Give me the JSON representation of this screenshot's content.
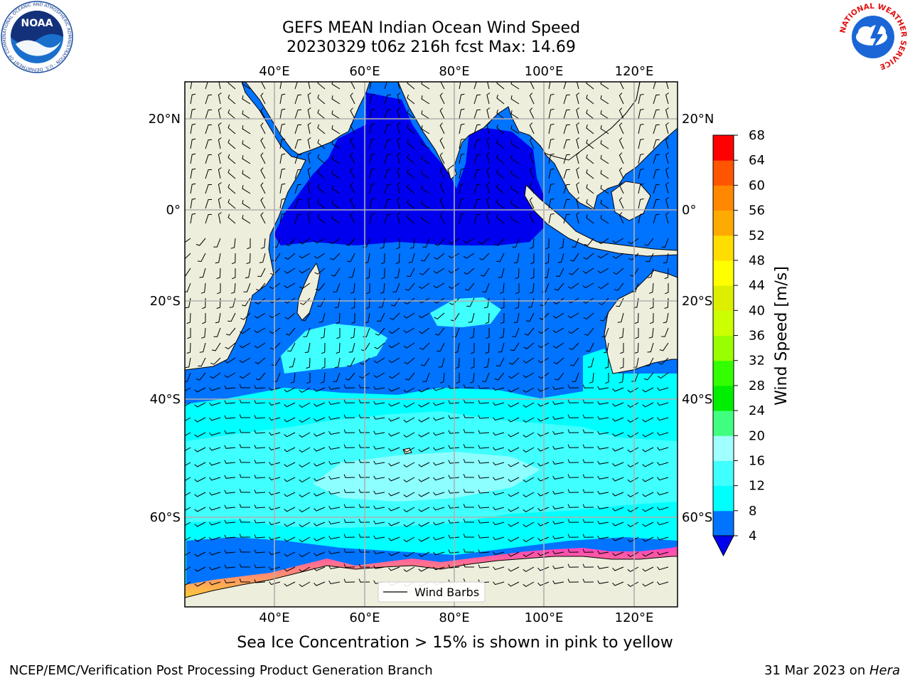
{
  "header": {
    "title_line1": "GEFS MEAN Indian Ocean Wind Speed",
    "title_line2": "20230329 t06z 216h fcst   Max: 14.69"
  },
  "map": {
    "lon_ticks": [
      "40°E",
      "60°E",
      "80°E",
      "100°E",
      "120°E"
    ],
    "lat_ticks": [
      "20°N",
      "0°",
      "20°S",
      "40°S",
      "60°S"
    ],
    "legend_label": "Wind Barbs",
    "colors": {
      "land": "#eeeedc",
      "ocean_4_8": "#0073ff",
      "ocean_under_4": "#0000ee",
      "ocean_8_12": "#00ffff",
      "ocean_12_16": "#40ffff",
      "ice": "#ff40c0"
    }
  },
  "colorbar": {
    "label": "Wind Speed [m/s]",
    "ticks": [
      "4",
      "8",
      "12",
      "16",
      "20",
      "24",
      "28",
      "32",
      "36",
      "40",
      "44",
      "48",
      "52",
      "56",
      "60",
      "64",
      "68"
    ],
    "colors": [
      "#0073ff",
      "#00ffff",
      "#40ffff",
      "#a0ffff",
      "#40ff80",
      "#00ee00",
      "#33ff00",
      "#99ff00",
      "#ccff00",
      "#ddee00",
      "#ffff00",
      "#ffdd00",
      "#ffaa00",
      "#ff8800",
      "#ff5500",
      "#ff0000"
    ],
    "under_color": "#0000ee"
  },
  "footer": {
    "subtitle": "Sea Ice Concentration > 15% is shown in pink to yellow",
    "credit": "NCEP/EMC/Verification Post Processing Product Generation Branch",
    "date": "31 Mar 2023 on ",
    "machine": "Hera"
  },
  "logos": {
    "noaa": "NOAA",
    "noaa_ring": "NATIONAL OCEANIC AND ATMOSPHERIC ADMINISTRATION · U.S. DEPARTMENT OF COMMERCE ·",
    "nws_ring": "NATIONAL WEATHER SERVICE"
  }
}
